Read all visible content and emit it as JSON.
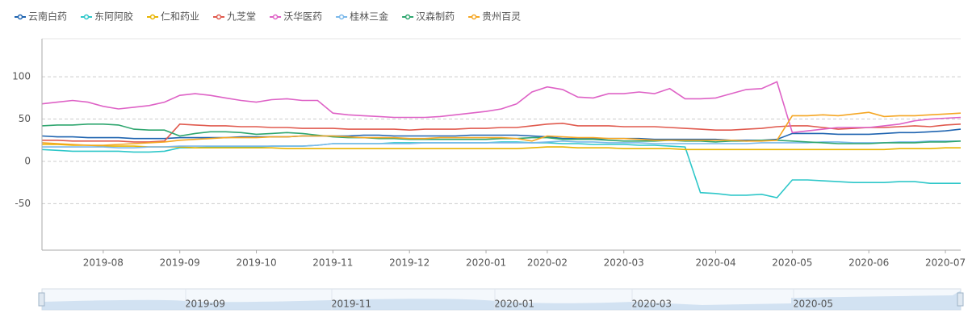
{
  "chart_data": {
    "type": "line",
    "categories": [
      null,
      null,
      null,
      null,
      "2019-08",
      null,
      null,
      null,
      null,
      "2019-09",
      null,
      null,
      null,
      null,
      "2019-10",
      null,
      null,
      null,
      null,
      "2019-11",
      null,
      null,
      null,
      null,
      "2019-12",
      null,
      null,
      null,
      null,
      "2020-01",
      null,
      null,
      null,
      "2020-02",
      null,
      null,
      null,
      null,
      "2020-03",
      null,
      null,
      null,
      null,
      null,
      "2020-04",
      null,
      null,
      null,
      null,
      "2020-05",
      null,
      null,
      null,
      null,
      "2020-06",
      null,
      null,
      null,
      null,
      "2020-07",
      null
    ],
    "ylim": [
      -105,
      145
    ],
    "yticks": [
      -50,
      0,
      50,
      100
    ],
    "grid": true,
    "series": [
      {
        "name": "云南白药",
        "color": "#1f64b0",
        "values": [
          30,
          29,
          29,
          28,
          28,
          28,
          27,
          27,
          27,
          28,
          28,
          28,
          28,
          29,
          29,
          29,
          29,
          30,
          30,
          30,
          30,
          31,
          31,
          30,
          30,
          30,
          30,
          30,
          31,
          31,
          31,
          31,
          30,
          29,
          27,
          27,
          27,
          27,
          27,
          27,
          26,
          26,
          26,
          26,
          26,
          25,
          25,
          25,
          26,
          33,
          33,
          33,
          32,
          32,
          32,
          33,
          34,
          34,
          35,
          36,
          38
        ]
      },
      {
        "name": "东阿阿胶",
        "color": "#2ec7c9",
        "values": [
          14,
          13,
          12,
          12,
          12,
          12,
          11,
          11,
          12,
          16,
          16,
          17,
          17,
          17,
          17,
          18,
          18,
          18,
          19,
          21,
          21,
          21,
          21,
          22,
          22,
          22,
          22,
          22,
          22,
          22,
          23,
          23,
          22,
          22,
          21,
          21,
          20,
          20,
          20,
          19,
          19,
          18,
          17,
          -37,
          -38,
          -40,
          -40,
          -39,
          -43,
          -22,
          -22,
          -23,
          -24,
          -25,
          -25,
          -25,
          -24,
          -24,
          -26,
          -26,
          -26
        ]
      },
      {
        "name": "仁和药业",
        "color": "#e8b400",
        "values": [
          20,
          20,
          19,
          19,
          18,
          18,
          18,
          17,
          17,
          17,
          16,
          16,
          16,
          16,
          16,
          16,
          15,
          15,
          15,
          15,
          15,
          15,
          15,
          15,
          15,
          15,
          15,
          15,
          15,
          15,
          15,
          15,
          16,
          17,
          17,
          16,
          16,
          16,
          15,
          15,
          15,
          15,
          14,
          14,
          14,
          14,
          14,
          14,
          14,
          14,
          14,
          14,
          14,
          14,
          14,
          14,
          15,
          15,
          15,
          16,
          16
        ]
      },
      {
        "name": "九芝堂",
        "color": "#e05a4e",
        "values": [
          25,
          25,
          24,
          24,
          24,
          24,
          23,
          23,
          24,
          44,
          43,
          42,
          42,
          41,
          41,
          40,
          40,
          39,
          39,
          39,
          38,
          38,
          38,
          38,
          37,
          38,
          38,
          38,
          39,
          39,
          40,
          40,
          42,
          44,
          45,
          42,
          42,
          42,
          41,
          41,
          41,
          40,
          39,
          38,
          37,
          37,
          38,
          39,
          41,
          42,
          42,
          40,
          38,
          39,
          40,
          40,
          41,
          42,
          41,
          43,
          44
        ]
      },
      {
        "name": "沃华医药",
        "color": "#de62c6",
        "values": [
          68,
          70,
          72,
          70,
          65,
          62,
          64,
          66,
          70,
          78,
          80,
          78,
          75,
          72,
          70,
          73,
          74,
          72,
          72,
          57,
          55,
          54,
          53,
          52,
          52,
          52,
          53,
          55,
          57,
          59,
          62,
          68,
          82,
          88,
          85,
          76,
          75,
          80,
          80,
          82,
          80,
          86,
          74,
          74,
          75,
          80,
          85,
          86,
          94,
          34,
          36,
          38,
          40,
          40,
          40,
          42,
          44,
          48,
          50,
          51,
          52
        ]
      },
      {
        "name": "桂林三金",
        "color": "#7ab8ea",
        "values": [
          17,
          17,
          17,
          17,
          17,
          16,
          16,
          17,
          17,
          18,
          18,
          18,
          18,
          18,
          18,
          18,
          18,
          18,
          19,
          21,
          21,
          21,
          21,
          21,
          21,
          22,
          22,
          22,
          22,
          22,
          22,
          22,
          22,
          23,
          24,
          23,
          23,
          22,
          22,
          22,
          21,
          21,
          21,
          21,
          21,
          21,
          21,
          22,
          22,
          22,
          22,
          23,
          23,
          22,
          22,
          22,
          23,
          23,
          24,
          24,
          24
        ]
      },
      {
        "name": "汉森制药",
        "color": "#2fa66f",
        "values": [
          42,
          43,
          43,
          44,
          44,
          43,
          38,
          37,
          37,
          30,
          33,
          35,
          35,
          34,
          32,
          33,
          34,
          33,
          31,
          29,
          28,
          28,
          27,
          27,
          26,
          26,
          26,
          26,
          26,
          26,
          27,
          27,
          28,
          28,
          26,
          26,
          26,
          25,
          24,
          24,
          24,
          25,
          24,
          24,
          23,
          24,
          24,
          25,
          25,
          24,
          23,
          22,
          21,
          21,
          21,
          22,
          22,
          22,
          23,
          23,
          24
        ]
      },
      {
        "name": "贵州百灵",
        "color": "#f5a623",
        "values": [
          22,
          21,
          20,
          19,
          19,
          20,
          21,
          22,
          23,
          25,
          26,
          27,
          28,
          28,
          28,
          29,
          29,
          30,
          30,
          30,
          29,
          28,
          28,
          28,
          27,
          27,
          28,
          28,
          28,
          28,
          28,
          27,
          24,
          30,
          29,
          28,
          28,
          27,
          27,
          26,
          25,
          25,
          25,
          25,
          25,
          25,
          24,
          24,
          25,
          54,
          54,
          55,
          54,
          56,
          58,
          53,
          54,
          54,
          55,
          56,
          57
        ]
      }
    ],
    "slider": {
      "labels": [
        "2019-09",
        "2019-11",
        "2020-01",
        "2020-03",
        "2020-05"
      ]
    }
  }
}
